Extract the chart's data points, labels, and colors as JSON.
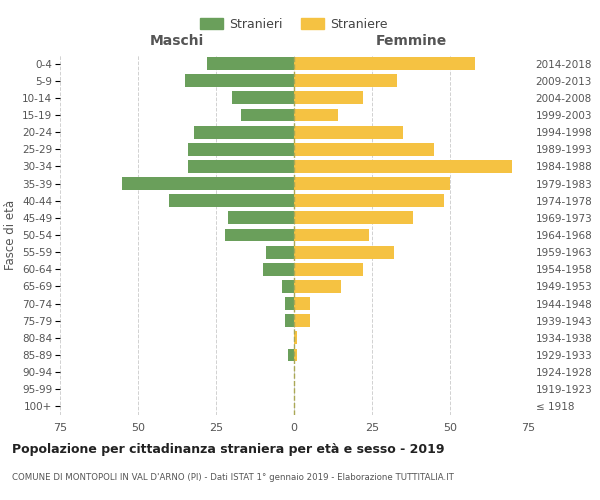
{
  "age_groups": [
    "100+",
    "95-99",
    "90-94",
    "85-89",
    "80-84",
    "75-79",
    "70-74",
    "65-69",
    "60-64",
    "55-59",
    "50-54",
    "45-49",
    "40-44",
    "35-39",
    "30-34",
    "25-29",
    "20-24",
    "15-19",
    "10-14",
    "5-9",
    "0-4"
  ],
  "birth_years": [
    "≤ 1918",
    "1919-1923",
    "1924-1928",
    "1929-1933",
    "1934-1938",
    "1939-1943",
    "1944-1948",
    "1949-1953",
    "1954-1958",
    "1959-1963",
    "1964-1968",
    "1969-1973",
    "1974-1978",
    "1979-1983",
    "1984-1988",
    "1989-1993",
    "1994-1998",
    "1999-2003",
    "2004-2008",
    "2009-2013",
    "2014-2018"
  ],
  "maschi": [
    0,
    0,
    0,
    2,
    0,
    3,
    3,
    4,
    10,
    9,
    22,
    21,
    40,
    55,
    34,
    34,
    32,
    17,
    20,
    35,
    28
  ],
  "femmine": [
    0,
    0,
    0,
    1,
    1,
    5,
    5,
    15,
    22,
    32,
    24,
    38,
    48,
    50,
    70,
    45,
    35,
    14,
    22,
    33,
    58
  ],
  "male_color": "#6a9f5b",
  "female_color": "#f5c242",
  "title": "Popolazione per cittadinanza straniera per età e sesso - 2019",
  "subtitle": "COMUNE DI MONTOPOLI IN VAL D'ARNO (PI) - Dati ISTAT 1° gennaio 2019 - Elaborazione TUTTITALIA.IT",
  "xlabel_left": "Maschi",
  "xlabel_right": "Femmine",
  "ylabel_left": "Fasce di età",
  "legend_male": "Stranieri",
  "legend_female": "Straniere",
  "xlim": 75,
  "background_color": "#ffffff",
  "grid_color": "#cccccc"
}
